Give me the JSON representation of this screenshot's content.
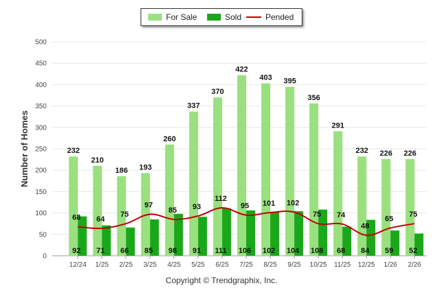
{
  "chart_data": {
    "type": "bar",
    "ylabel": "Number of Homes",
    "xlabel": "",
    "ylim": [
      0,
      500
    ],
    "yticks": [
      0,
      50,
      100,
      150,
      200,
      250,
      300,
      350,
      400,
      450,
      500
    ],
    "categories": [
      "12/24",
      "1/25",
      "2/25",
      "3/25",
      "4/25",
      "5/25",
      "6/25",
      "7/25",
      "8/25",
      "9/25",
      "10/25",
      "11/25",
      "12/25",
      "1/26",
      "2/26"
    ],
    "series": [
      {
        "name": "For Sale",
        "type": "bar",
        "color": "#99e07f",
        "values": [
          232,
          210,
          186,
          193,
          260,
          337,
          370,
          422,
          403,
          395,
          356,
          291,
          232,
          226,
          226
        ]
      },
      {
        "name": "Sold",
        "type": "bar",
        "color": "#1aa81a",
        "values": [
          92,
          71,
          66,
          85,
          98,
          91,
          111,
          106,
          102,
          104,
          108,
          68,
          84,
          59,
          52
        ]
      },
      {
        "name": "Pended",
        "type": "line",
        "color": "#c00000",
        "values": [
          68,
          64,
          75,
          97,
          85,
          93,
          112,
          95,
          101,
          102,
          75,
          74,
          48,
          65,
          75
        ]
      }
    ],
    "legend": "top-center"
  },
  "copyright": "Copyright © Trendgraphix, Inc."
}
